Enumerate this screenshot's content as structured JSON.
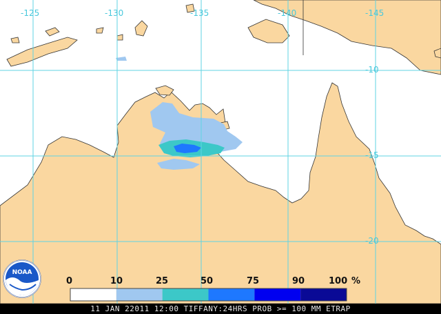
{
  "map": {
    "longitude_labels": [
      "-125",
      "-130",
      "-135",
      "-140",
      "-145"
    ],
    "latitude_labels": [
      "-10",
      "-15",
      "-20"
    ],
    "colors": {
      "ocean": "#ffffff",
      "land": "#fad7a0",
      "coast": "#333333",
      "grid": "#5fd3e3",
      "grid_label": "#48c8dc"
    }
  },
  "legend": {
    "labels": [
      "0",
      "10",
      "25",
      "50",
      "75",
      "90",
      "100"
    ],
    "unit": "%",
    "bins": [
      {
        "range": "0-10",
        "color": "#ffffff"
      },
      {
        "range": "10-25",
        "color": "#a0c8f0"
      },
      {
        "range": "25-50",
        "color": "#3cc8c8"
      },
      {
        "range": "50-75",
        "color": "#1e78ff"
      },
      {
        "range": "75-90",
        "color": "#0000f0"
      },
      {
        "range": "90-100",
        "color": "#0a0a96"
      }
    ]
  },
  "logo": {
    "text": "NOAA"
  },
  "status_bar": {
    "text": "11 JAN 22011 12:00 TIFFANY:24HRS PROB >= 100 MM ETRAP"
  }
}
